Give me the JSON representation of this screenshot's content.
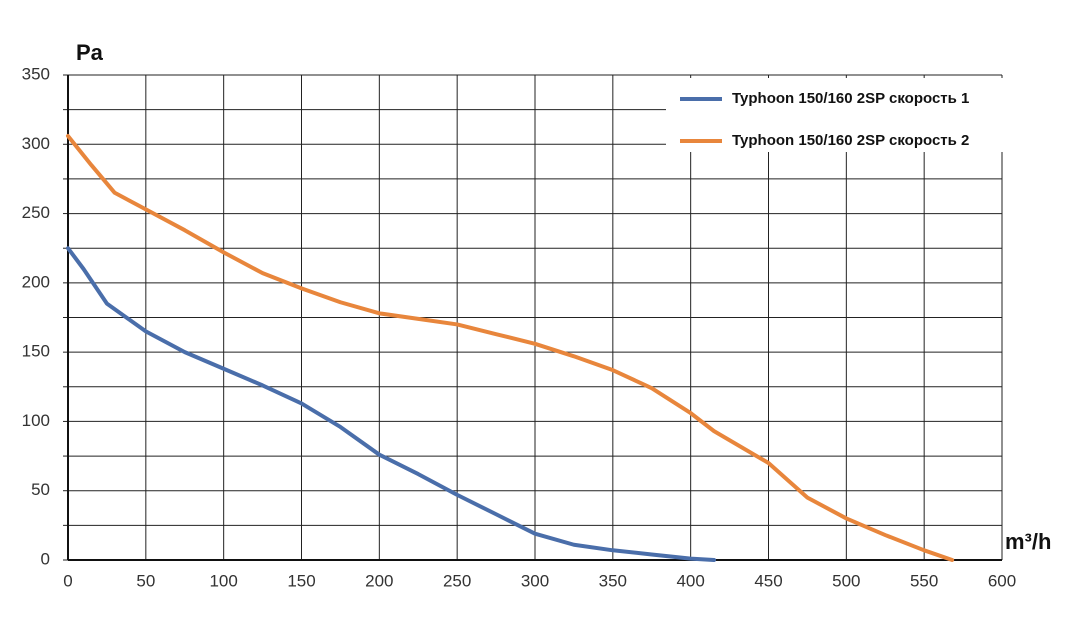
{
  "chart_data": {
    "type": "line",
    "y_label": "Pa",
    "x_label": "m³/h",
    "xlim": [
      0,
      600
    ],
    "xticks": [
      0,
      50,
      100,
      150,
      200,
      250,
      300,
      350,
      400,
      450,
      500,
      550,
      600
    ],
    "ylim": [
      0,
      350
    ],
    "yticks": [
      0,
      50,
      100,
      150,
      200,
      250,
      300,
      350
    ],
    "y_minor_grid": [
      25,
      75,
      125,
      175,
      225,
      275,
      325
    ],
    "grid": true,
    "legend": "top-right",
    "series": [
      {
        "name": "Typhoon 150/160 2SP скорость 1",
        "color": "#4a6eaa",
        "x": [
          0,
          10,
          25,
          50,
          75,
          100,
          125,
          150,
          175,
          200,
          225,
          250,
          275,
          300,
          325,
          350,
          375,
          400,
          415
        ],
        "values": [
          225,
          210,
          185,
          165,
          150,
          138,
          126,
          113,
          96,
          76,
          62,
          47,
          33,
          19,
          11,
          7,
          4,
          1,
          0
        ]
      },
      {
        "name": "Typhoon 150/160 2SP скорость 2",
        "color": "#e8863c",
        "x": [
          0,
          15,
          30,
          50,
          75,
          100,
          125,
          150,
          175,
          200,
          225,
          250,
          275,
          300,
          325,
          350,
          375,
          400,
          415,
          450,
          475,
          500,
          525,
          550,
          568
        ],
        "values": [
          306,
          285,
          265,
          253,
          238,
          222,
          207,
          196,
          186,
          178,
          174,
          170,
          163,
          156,
          147,
          137,
          124,
          106,
          93,
          70,
          45,
          30,
          18,
          7,
          0
        ]
      }
    ]
  }
}
